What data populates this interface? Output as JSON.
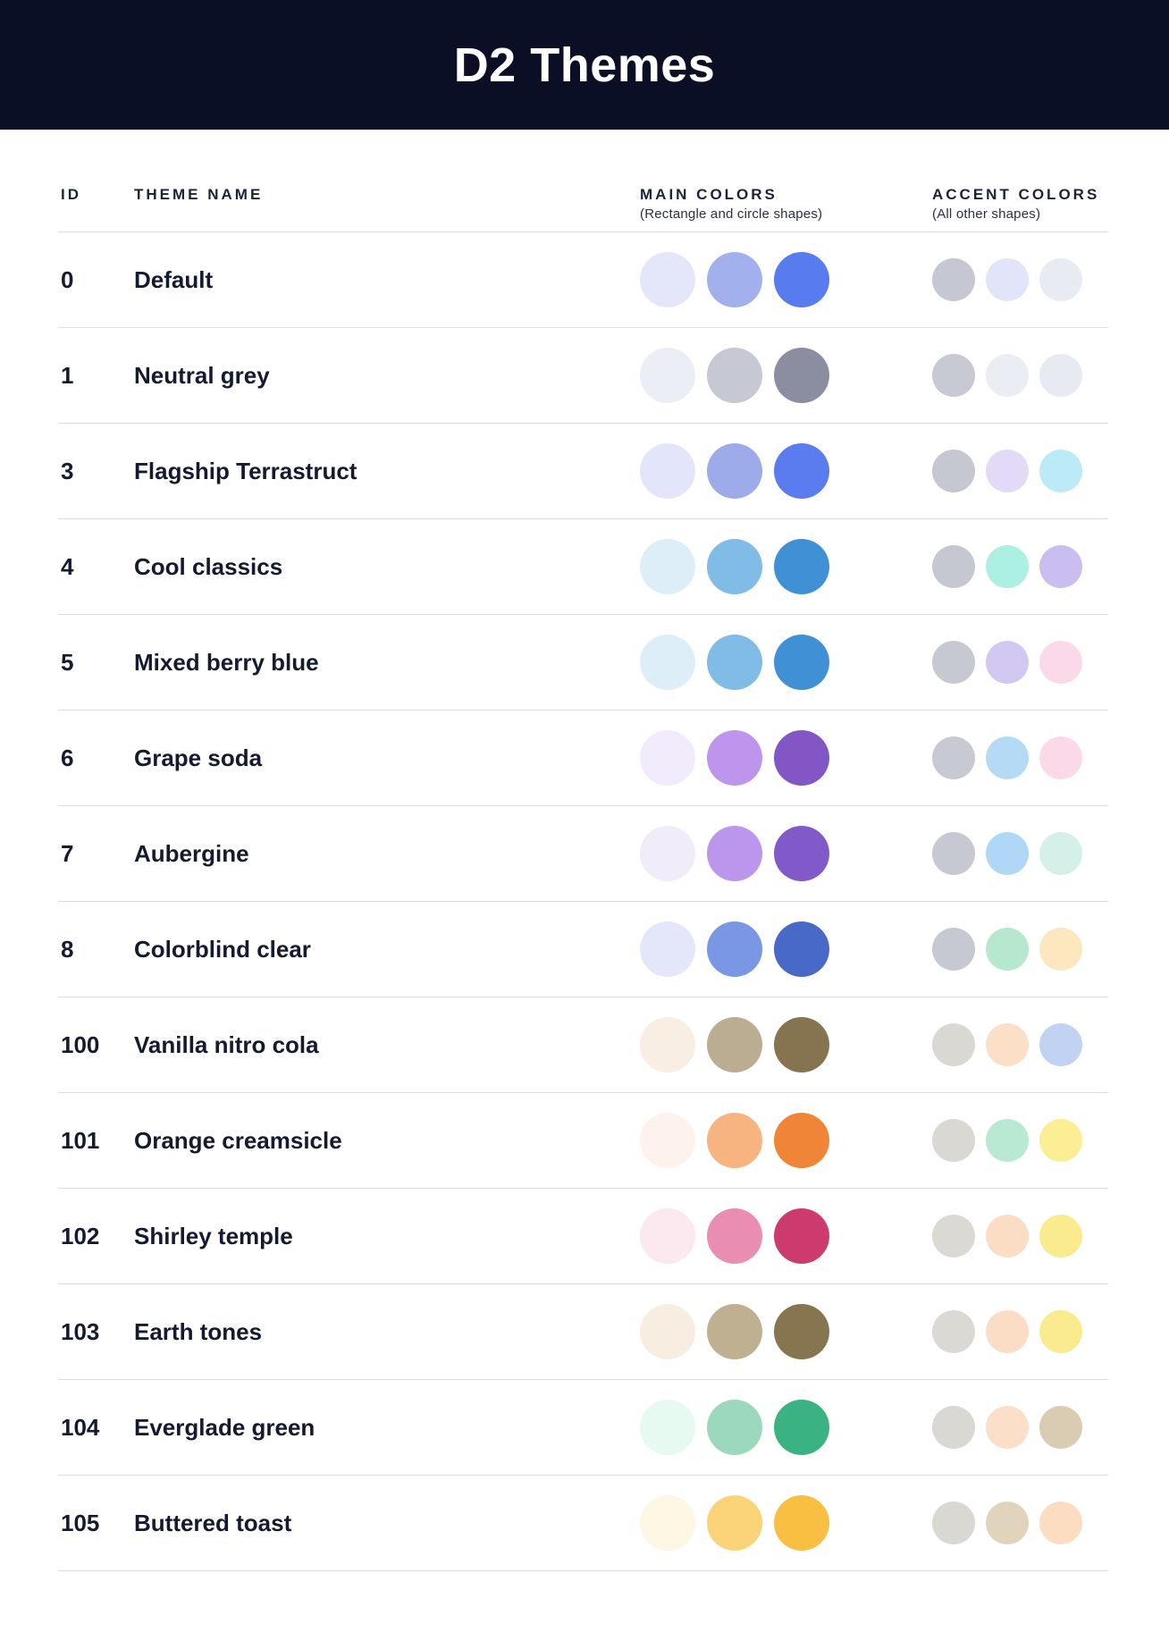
{
  "header": {
    "title": "D2 Themes",
    "background": "#0A0F25"
  },
  "table": {
    "columns": {
      "id": "ID",
      "theme_name": "THEME NAME",
      "main_colors": "MAIN COLORS",
      "main_colors_subtitle": "(Rectangle and circle shapes)",
      "accent_colors": "ACCENT COLORS",
      "accent_colors_subtitle": "(All other shapes)"
    },
    "rows": [
      {
        "id": "0",
        "name": "Default",
        "main": [
          "#E4E7FA",
          "#A2B1EE",
          "#587CEF"
        ],
        "accent": [
          "#C5C7D2",
          "#E2E4F9",
          "#E9EBF3"
        ]
      },
      {
        "id": "1",
        "name": "Neutral grey",
        "main": [
          "#EBEEF4",
          "#C6C9D3",
          "#8B8DA0"
        ],
        "accent": [
          "#C7C9D3",
          "#EBEDF4",
          "#E8EAF1"
        ]
      },
      {
        "id": "3",
        "name": "Flagship Terrastruct",
        "main": [
          "#E3E6FA",
          "#9EABEA",
          "#5B7CEE"
        ],
        "accent": [
          "#C5C7D1",
          "#E2DAF6",
          "#BCEAF7"
        ]
      },
      {
        "id": "4",
        "name": "Cool classics",
        "main": [
          "#DDEEF9",
          "#81BCE7",
          "#4090D5"
        ],
        "accent": [
          "#C5C7D1",
          "#ABF0E2",
          "#CABEF1"
        ]
      },
      {
        "id": "5",
        "name": "Mixed berry blue",
        "main": [
          "#DDEEF9",
          "#81BCE7",
          "#4090D5"
        ],
        "accent": [
          "#C6C8D2",
          "#D3C8F2",
          "#FBD9EB"
        ]
      },
      {
        "id": "6",
        "name": "Grape soda",
        "main": [
          "#F2EBFB",
          "#BD95EC",
          "#8356C6"
        ],
        "accent": [
          "#C7C9D3",
          "#B4DAF5",
          "#FBD9E9"
        ]
      },
      {
        "id": "7",
        "name": "Aubergine",
        "main": [
          "#F1ECFA",
          "#BB96EC",
          "#8259C8"
        ],
        "accent": [
          "#C6C8D2",
          "#AFD8F7",
          "#D5F0E8"
        ]
      },
      {
        "id": "8",
        "name": "Colorblind clear",
        "main": [
          "#E3E7F9",
          "#7997E4",
          "#4969C8"
        ],
        "accent": [
          "#C6C8D2",
          "#B6E8CD",
          "#FCE7BE"
        ]
      },
      {
        "id": "100",
        "name": "Vanilla nitro cola",
        "main": [
          "#F8EEE3",
          "#BBAD92",
          "#867451"
        ],
        "accent": [
          "#DAD8D2",
          "#FCDFC7",
          "#C2D2F3"
        ]
      },
      {
        "id": "101",
        "name": "Orange creamsicle",
        "main": [
          "#FEF3EC",
          "#F8B480",
          "#F08437"
        ],
        "accent": [
          "#DAD8D2",
          "#B7E9D3",
          "#FBEE95"
        ]
      },
      {
        "id": "102",
        "name": "Shirley temple",
        "main": [
          "#FCE8EF",
          "#E98EB2",
          "#CD3B6E"
        ],
        "accent": [
          "#DBD9D3",
          "#FBDDC4",
          "#FAEC8E"
        ]
      },
      {
        "id": "103",
        "name": "Earth tones",
        "main": [
          "#F8EDE1",
          "#BFB091",
          "#877550"
        ],
        "accent": [
          "#DBD9D3",
          "#FBDDC5",
          "#FAEC8E"
        ]
      },
      {
        "id": "104",
        "name": "Everglade green",
        "main": [
          "#E7FAF2",
          "#9CD9BC",
          "#3BB282"
        ],
        "accent": [
          "#DAD8D2",
          "#FCDFC8",
          "#DACCB3"
        ]
      },
      {
        "id": "105",
        "name": "Buttered toast",
        "main": [
          "#FEF7E4",
          "#FBD379",
          "#F8BF42"
        ],
        "accent": [
          "#DAD8D2",
          "#E0D4BD",
          "#FCDDC1"
        ]
      }
    ]
  }
}
